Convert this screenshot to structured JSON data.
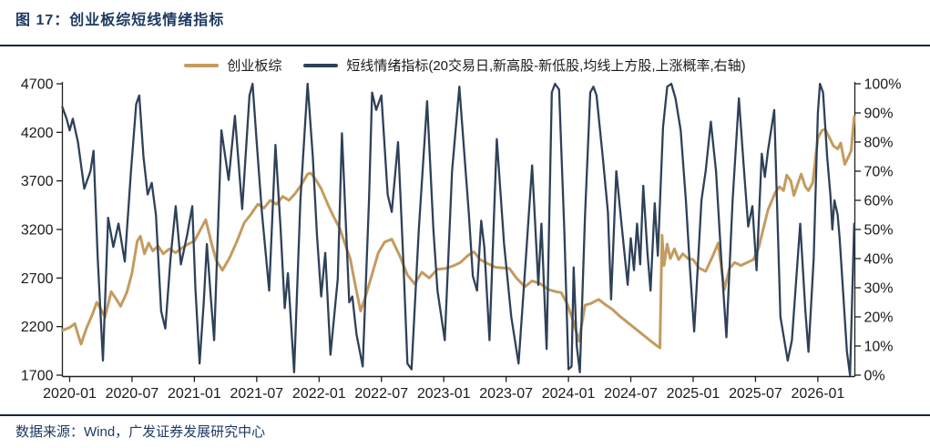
{
  "title": "图  17：创业板综短线情绪指标",
  "footer": "数据来源：Wind，广发证券发展研究中心",
  "colors": {
    "title_navy": "#1e3a62",
    "rule": "#16243c",
    "axis": "#1f1f1f",
    "tick_label": "#1a1a1a",
    "gold_series": "#c49b5f",
    "navy_series": "#2e4158",
    "background": "#ffffff"
  },
  "legend": {
    "items": [
      {
        "label": "创业板综",
        "color": "#c49b5f"
      },
      {
        "label": "短线情绪指标(20交易日,新高股-新低股,均线上方股,上涨概率,右轴)",
        "color": "#2e4158"
      }
    ]
  },
  "chart_data": {
    "type": "line",
    "title": "创业板综短线情绪指标",
    "grid": false,
    "legend_position": "top-center",
    "x_axis": {
      "unit": "months since 2020-01",
      "tick_step_months": 6,
      "labels": [
        "2020-01",
        "2020-07",
        "2021-01",
        "2021-07",
        "2022-01",
        "2022-07",
        "2023-01",
        "2023-07",
        "2024-01",
        "2024-07",
        "2025-01",
        "2025-07",
        "2026-01"
      ],
      "domain_months": [
        -0.7,
        75.6
      ]
    },
    "y_left": {
      "min": 1700,
      "max": 4700,
      "ticks": [
        4700,
        4200,
        3700,
        3200,
        2700,
        2200,
        1700
      ]
    },
    "y_right": {
      "min": 0,
      "max": 100,
      "tick_labels": [
        "100%",
        "90%",
        "80%",
        "70%",
        "60%",
        "50%",
        "40%",
        "30%",
        "20%",
        "10%",
        "0%"
      ]
    },
    "series": [
      {
        "name": "创业板综",
        "axis": "left",
        "color": "#c49b5f",
        "width": 3,
        "points": [
          [
            -0.7,
            2160
          ],
          [
            0,
            2190
          ],
          [
            0.5,
            2230
          ],
          [
            0.8,
            2120
          ],
          [
            1.1,
            2020
          ],
          [
            1.6,
            2180
          ],
          [
            2.2,
            2330
          ],
          [
            2.6,
            2450
          ],
          [
            3.0,
            2380
          ],
          [
            3.4,
            2300
          ],
          [
            4.0,
            2560
          ],
          [
            4.5,
            2480
          ],
          [
            4.9,
            2410
          ],
          [
            5.5,
            2550
          ],
          [
            6.0,
            2750
          ],
          [
            6.5,
            3080
          ],
          [
            6.8,
            3130
          ],
          [
            7.2,
            2950
          ],
          [
            7.6,
            3060
          ],
          [
            8.0,
            2980
          ],
          [
            8.5,
            3030
          ],
          [
            9.0,
            2950
          ],
          [
            9.6,
            3000
          ],
          [
            10.2,
            2960
          ],
          [
            10.8,
            3010
          ],
          [
            11.4,
            3050
          ],
          [
            12.0,
            3080
          ],
          [
            12.6,
            3200
          ],
          [
            13.1,
            3300
          ],
          [
            13.6,
            3080
          ],
          [
            14.1,
            2880
          ],
          [
            14.7,
            2780
          ],
          [
            15.4,
            2910
          ],
          [
            16.1,
            3080
          ],
          [
            16.8,
            3270
          ],
          [
            17.4,
            3350
          ],
          [
            18.1,
            3460
          ],
          [
            18.7,
            3420
          ],
          [
            19.3,
            3500
          ],
          [
            19.9,
            3460
          ],
          [
            20.5,
            3540
          ],
          [
            21.1,
            3500
          ],
          [
            21.7,
            3570
          ],
          [
            22.3,
            3660
          ],
          [
            22.9,
            3770
          ],
          [
            23.2,
            3780
          ],
          [
            23.7,
            3710
          ],
          [
            24.2,
            3620
          ],
          [
            24.8,
            3470
          ],
          [
            25.4,
            3330
          ],
          [
            26.0,
            3210
          ],
          [
            26.5,
            3050
          ],
          [
            27.0,
            2900
          ],
          [
            27.5,
            2620
          ],
          [
            28.0,
            2360
          ],
          [
            28.5,
            2520
          ],
          [
            29.0,
            2700
          ],
          [
            29.7,
            2960
          ],
          [
            30.3,
            3070
          ],
          [
            31.0,
            3100
          ],
          [
            31.8,
            2920
          ],
          [
            32.5,
            2730
          ],
          [
            33.2,
            2640
          ],
          [
            33.9,
            2760
          ],
          [
            34.6,
            2700
          ],
          [
            35.4,
            2790
          ],
          [
            36.2,
            2800
          ],
          [
            37.0,
            2830
          ],
          [
            37.6,
            2860
          ],
          [
            38.3,
            2930
          ],
          [
            38.9,
            2970
          ],
          [
            39.5,
            2890
          ],
          [
            40.2,
            2850
          ],
          [
            41.0,
            2810
          ],
          [
            42.3,
            2800
          ],
          [
            43.0,
            2700
          ],
          [
            43.8,
            2610
          ],
          [
            44.5,
            2670
          ],
          [
            45.3,
            2640
          ],
          [
            46.1,
            2580
          ],
          [
            46.8,
            2560
          ],
          [
            47.3,
            2550
          ],
          [
            47.9,
            2430
          ],
          [
            48.5,
            2240
          ],
          [
            49.0,
            2050
          ],
          [
            49.6,
            2420
          ],
          [
            50.2,
            2440
          ],
          [
            50.9,
            2480
          ],
          [
            51.5,
            2430
          ],
          [
            52.2,
            2380
          ],
          [
            52.9,
            2310
          ],
          [
            53.6,
            2250
          ],
          [
            54.3,
            2190
          ],
          [
            55.0,
            2130
          ],
          [
            55.7,
            2070
          ],
          [
            56.3,
            2020
          ],
          [
            56.8,
            1980
          ],
          [
            57.0,
            3140
          ],
          [
            57.2,
            2830
          ],
          [
            57.5,
            3050
          ],
          [
            57.8,
            2900
          ],
          [
            58.2,
            3000
          ],
          [
            58.6,
            2890
          ],
          [
            59.0,
            2950
          ],
          [
            59.5,
            2900
          ],
          [
            60.0,
            2890
          ],
          [
            60.6,
            2800
          ],
          [
            61.2,
            2770
          ],
          [
            61.9,
            2930
          ],
          [
            62.4,
            3060
          ],
          [
            63.0,
            2580
          ],
          [
            63.5,
            2800
          ],
          [
            64.0,
            2860
          ],
          [
            64.6,
            2830
          ],
          [
            65.2,
            2860
          ],
          [
            65.8,
            2890
          ],
          [
            66.3,
            3010
          ],
          [
            66.8,
            3230
          ],
          [
            67.2,
            3400
          ],
          [
            67.9,
            3580
          ],
          [
            68.3,
            3640
          ],
          [
            68.7,
            3600
          ],
          [
            69.0,
            3760
          ],
          [
            69.4,
            3700
          ],
          [
            69.7,
            3550
          ],
          [
            70.1,
            3680
          ],
          [
            70.4,
            3770
          ],
          [
            70.8,
            3640
          ],
          [
            71.1,
            3600
          ],
          [
            71.5,
            3680
          ],
          [
            72.0,
            4140
          ],
          [
            72.4,
            4220
          ],
          [
            72.7,
            4230
          ],
          [
            73.1,
            4150
          ],
          [
            73.5,
            4060
          ],
          [
            73.9,
            4030
          ],
          [
            74.2,
            4090
          ],
          [
            74.6,
            3870
          ],
          [
            74.9,
            3940
          ],
          [
            75.2,
            4010
          ],
          [
            75.5,
            4360
          ]
        ]
      },
      {
        "name": "短线情绪指标(20交易日,新高股-新低股,均线上方股,上涨概率,右轴)",
        "axis": "right",
        "color": "#2e4158",
        "width": 2.3,
        "points": [
          [
            -0.7,
            92
          ],
          [
            -0.3,
            88
          ],
          [
            0.0,
            84
          ],
          [
            0.3,
            88
          ],
          [
            0.8,
            80
          ],
          [
            1.4,
            64
          ],
          [
            2.0,
            70
          ],
          [
            2.3,
            77
          ],
          [
            2.7,
            40
          ],
          [
            3.2,
            5
          ],
          [
            3.7,
            54
          ],
          [
            4.2,
            44
          ],
          [
            4.7,
            52
          ],
          [
            5.3,
            39
          ],
          [
            5.9,
            70
          ],
          [
            6.4,
            93
          ],
          [
            6.7,
            96
          ],
          [
            7.1,
            75
          ],
          [
            7.5,
            62
          ],
          [
            7.9,
            66
          ],
          [
            8.3,
            55
          ],
          [
            8.8,
            22
          ],
          [
            9.2,
            16
          ],
          [
            9.7,
            40
          ],
          [
            10.2,
            58
          ],
          [
            10.7,
            38
          ],
          [
            11.3,
            48
          ],
          [
            11.8,
            58
          ],
          [
            12.1,
            30
          ],
          [
            12.5,
            4
          ],
          [
            12.9,
            25
          ],
          [
            13.2,
            45
          ],
          [
            13.6,
            26
          ],
          [
            13.9,
            12
          ],
          [
            14.6,
            84
          ],
          [
            15.3,
            67
          ],
          [
            15.9,
            89
          ],
          [
            16.6,
            57
          ],
          [
            17.3,
            96
          ],
          [
            17.6,
            100
          ],
          [
            18.0,
            80
          ],
          [
            18.5,
            56
          ],
          [
            19.2,
            29
          ],
          [
            19.8,
            79
          ],
          [
            20.3,
            50
          ],
          [
            20.7,
            23
          ],
          [
            21.0,
            35
          ],
          [
            21.6,
            1
          ],
          [
            22.2,
            60
          ],
          [
            22.9,
            100
          ],
          [
            23.4,
            75
          ],
          [
            23.8,
            48
          ],
          [
            24.2,
            27
          ],
          [
            24.6,
            42
          ],
          [
            25.1,
            7
          ],
          [
            25.8,
            33
          ],
          [
            26.2,
            83
          ],
          [
            26.9,
            25
          ],
          [
            27.2,
            27
          ],
          [
            27.6,
            14
          ],
          [
            28.2,
            3
          ],
          [
            28.8,
            60
          ],
          [
            29.1,
            97
          ],
          [
            29.5,
            91
          ],
          [
            30.0,
            96
          ],
          [
            30.6,
            62
          ],
          [
            31.0,
            56
          ],
          [
            31.6,
            80
          ],
          [
            32.1,
            40
          ],
          [
            32.5,
            4
          ],
          [
            32.9,
            2
          ],
          [
            33.6,
            50
          ],
          [
            34.4,
            94
          ],
          [
            35.0,
            50
          ],
          [
            35.4,
            29
          ],
          [
            36.1,
            12
          ],
          [
            36.8,
            70
          ],
          [
            37.5,
            99
          ],
          [
            38.0,
            75
          ],
          [
            38.4,
            56
          ],
          [
            38.8,
            34
          ],
          [
            39.2,
            29
          ],
          [
            39.6,
            53
          ],
          [
            39.9,
            44
          ],
          [
            40.4,
            12
          ],
          [
            41.1,
            81
          ],
          [
            41.8,
            45
          ],
          [
            42.5,
            20
          ],
          [
            43.2,
            4
          ],
          [
            43.9,
            40
          ],
          [
            44.5,
            72
          ],
          [
            45.1,
            31
          ],
          [
            45.4,
            52
          ],
          [
            45.9,
            9
          ],
          [
            46.4,
            97
          ],
          [
            46.7,
            100
          ],
          [
            47.1,
            98
          ],
          [
            47.6,
            50
          ],
          [
            48.0,
            2
          ],
          [
            48.3,
            3
          ],
          [
            48.5,
            37
          ],
          [
            48.8,
            10
          ],
          [
            49.1,
            1
          ],
          [
            49.6,
            55
          ],
          [
            50.1,
            97
          ],
          [
            50.4,
            99
          ],
          [
            50.7,
            96
          ],
          [
            51.3,
            75
          ],
          [
            51.8,
            56
          ],
          [
            52.1,
            26
          ],
          [
            52.6,
            70
          ],
          [
            53.1,
            52
          ],
          [
            53.7,
            31
          ],
          [
            54.0,
            47
          ],
          [
            54.3,
            36
          ],
          [
            54.6,
            52
          ],
          [
            54.9,
            38
          ],
          [
            55.2,
            65
          ],
          [
            55.6,
            42
          ],
          [
            55.9,
            29
          ],
          [
            56.3,
            59
          ],
          [
            56.6,
            41
          ],
          [
            57.1,
            85
          ],
          [
            57.5,
            99
          ],
          [
            57.9,
            100
          ],
          [
            58.3,
            95
          ],
          [
            58.8,
            84
          ],
          [
            59.3,
            60
          ],
          [
            59.7,
            36
          ],
          [
            60.1,
            15
          ],
          [
            60.8,
            60
          ],
          [
            61.2,
            70
          ],
          [
            61.7,
            87
          ],
          [
            62.2,
            70
          ],
          [
            62.7,
            40
          ],
          [
            63.2,
            13
          ],
          [
            63.8,
            60
          ],
          [
            64.4,
            95
          ],
          [
            64.9,
            70
          ],
          [
            65.3,
            51
          ],
          [
            65.7,
            58
          ],
          [
            66.1,
            36
          ],
          [
            66.6,
            76
          ],
          [
            66.9,
            68
          ],
          [
            67.2,
            77
          ],
          [
            67.8,
            91
          ],
          [
            68.4,
            20
          ],
          [
            69.1,
            5
          ],
          [
            69.5,
            12
          ],
          [
            70.3,
            52
          ],
          [
            70.8,
            22
          ],
          [
            71.1,
            8
          ],
          [
            71.6,
            40
          ],
          [
            72.0,
            90
          ],
          [
            72.2,
            100
          ],
          [
            72.5,
            97
          ],
          [
            72.9,
            75
          ],
          [
            73.2,
            62
          ],
          [
            73.4,
            50
          ],
          [
            73.6,
            60
          ],
          [
            73.9,
            55
          ],
          [
            74.1,
            47
          ],
          [
            74.4,
            30
          ],
          [
            74.8,
            8
          ],
          [
            75.1,
            0
          ],
          [
            75.5,
            52
          ]
        ]
      }
    ]
  }
}
